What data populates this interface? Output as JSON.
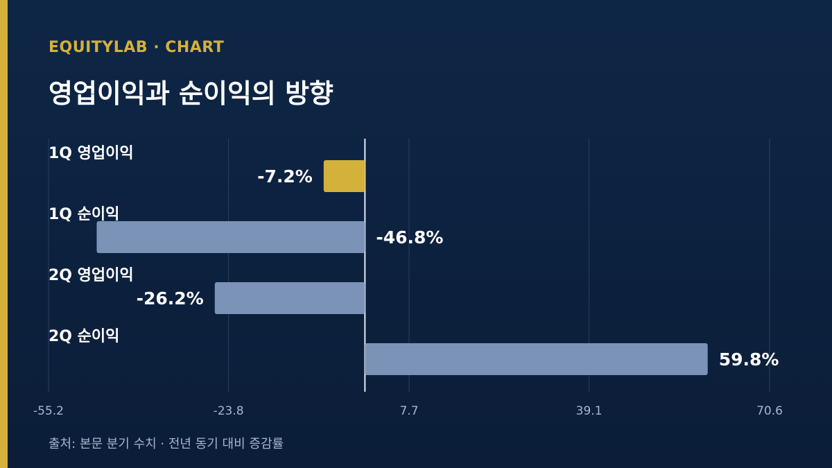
{
  "header": {
    "brand": "EQUITYLAB · CHART",
    "title": "영업이익과 순이익의 방향"
  },
  "footer": {
    "source": "출처: 본문 분기 수치 · 전년 동기 대비 증감률"
  },
  "colors": {
    "accent": "#d4b13a",
    "bar_highlight": "#d4b13a",
    "bar_default": "#7b93b6",
    "grid": "#2a4064",
    "zero_line": "#e6ebf2",
    "tick_text": "#a8b6cb"
  },
  "chart_data": {
    "type": "bar",
    "orientation": "horizontal",
    "title": "영업이익과 순이익의 방향",
    "categories": [
      "1Q 영업이익",
      "1Q 순이익",
      "2Q 영업이익",
      "2Q 순이익"
    ],
    "values": [
      -7.2,
      -46.8,
      -26.2,
      59.8
    ],
    "value_labels": [
      "-7.2%",
      "-46.8%",
      "-26.2%",
      "59.8%"
    ],
    "highlight_index": 0,
    "xlim": [
      -55.2,
      70.6
    ],
    "x_ticks": [
      -55.2,
      -23.8,
      7.7,
      39.1,
      70.6
    ],
    "x_tick_labels": [
      "-55.2",
      "-23.8",
      "7.7",
      "39.1",
      "70.6"
    ],
    "grid": true,
    "zero_line": true,
    "xlabel": "",
    "ylabel": ""
  }
}
